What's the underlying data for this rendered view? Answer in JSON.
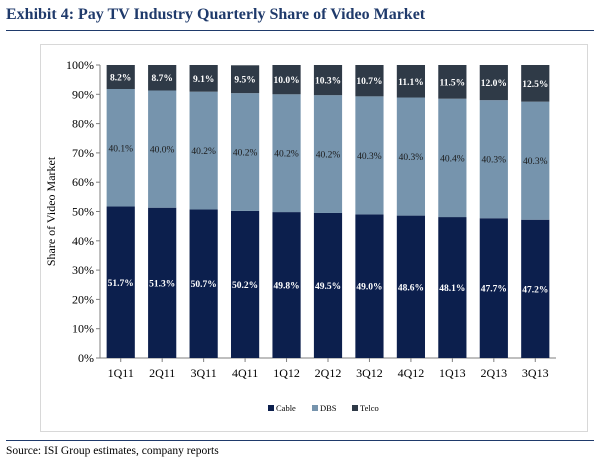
{
  "title": "Exhibit 4: Pay TV Industry Quarterly Share of Video Market",
  "source": "Source: ISI Group estimates, company reports",
  "chart_data": {
    "type": "bar",
    "stacked": true,
    "percent": true,
    "title": "Exhibit 4: Pay TV Industry Quarterly Share of Video Market",
    "xlabel": "",
    "ylabel": "Share of Video Market",
    "ylim": [
      0,
      100
    ],
    "yticks": [
      "0%",
      "10%",
      "20%",
      "30%",
      "40%",
      "50%",
      "60%",
      "70%",
      "80%",
      "90%",
      "100%"
    ],
    "grid": false,
    "legend_position": "bottom",
    "categories": [
      "1Q11",
      "2Q11",
      "3Q11",
      "4Q11",
      "1Q12",
      "2Q12",
      "3Q12",
      "4Q12",
      "1Q13",
      "2Q13",
      "3Q13"
    ],
    "series": [
      {
        "name": "Cable",
        "color": "#0c1f4d",
        "label_color": "#ffffff",
        "values": [
          51.7,
          51.3,
          50.7,
          50.2,
          49.8,
          49.5,
          49.0,
          48.6,
          48.1,
          47.7,
          47.2
        ],
        "labels": [
          "51.7%",
          "51.3%",
          "50.7%",
          "50.2%",
          "49.8%",
          "49.5%",
          "49.0%",
          "48.6%",
          "48.1%",
          "47.7%",
          "47.2%"
        ]
      },
      {
        "name": "DBS",
        "color": "#7694ad",
        "label_color": "#1a1a1a",
        "values": [
          40.1,
          40.0,
          40.2,
          40.2,
          40.2,
          40.2,
          40.3,
          40.3,
          40.4,
          40.3,
          40.3
        ],
        "labels": [
          "40.1%",
          "40.0%",
          "40.2%",
          "40.2%",
          "40.2%",
          "40.2%",
          "40.3%",
          "40.3%",
          "40.4%",
          "40.3%",
          "40.3%"
        ]
      },
      {
        "name": "Telco",
        "color": "#2f3a47",
        "label_color": "#ffffff",
        "values": [
          8.2,
          8.7,
          9.1,
          9.5,
          10.0,
          10.3,
          10.7,
          11.1,
          11.5,
          12.0,
          12.5
        ],
        "labels": [
          "8.2%",
          "8.7%",
          "9.1%",
          "9.5%",
          "10.0%",
          "10.3%",
          "10.7%",
          "11.1%",
          "11.5%",
          "12.0%",
          "12.5%"
        ]
      }
    ]
  }
}
